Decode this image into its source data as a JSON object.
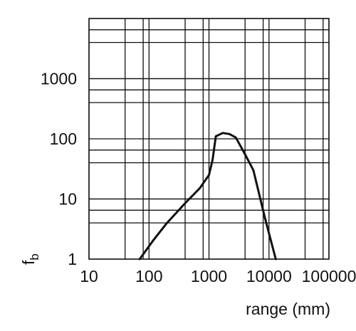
{
  "chart_data": {
    "type": "line",
    "xscale": "log",
    "yscale": "log",
    "xlim": [
      10,
      100000
    ],
    "ylim": [
      1,
      10000
    ],
    "xlabel": "range (mm)",
    "ylabel": "f_b",
    "ylabel_main": "f",
    "ylabel_sub": "b",
    "grid": true,
    "x_minor_grid": [
      40,
      80,
      400,
      800,
      4000,
      8000,
      40000,
      80000
    ],
    "y_minor_grid": [
      4,
      6.5,
      10,
      40,
      65,
      400,
      650,
      1000,
      4000,
      6500
    ],
    "xticks": [
      {
        "value": 10,
        "label": "10"
      },
      {
        "value": 100,
        "label": "100"
      },
      {
        "value": 1000,
        "label": "1000"
      },
      {
        "value": 10000,
        "label": "10000"
      },
      {
        "value": 100000,
        "label": "100000"
      }
    ],
    "yticks": [
      {
        "value": 1,
        "label": "1"
      },
      {
        "value": 10,
        "label": "10"
      },
      {
        "value": 100,
        "label": "100"
      },
      {
        "value": 1000,
        "label": "1000"
      }
    ],
    "series": [
      {
        "x": [
          70,
          120,
          200,
          400,
          700,
          1000,
          1150,
          1300,
          1700,
          2200,
          2800,
          4000,
          5500,
          8500,
          13000
        ],
        "y": [
          1,
          2.1,
          4,
          8.5,
          15,
          25,
          45,
          110,
          125,
          120,
          105,
          55,
          30,
          5,
          1
        ],
        "color": "#111111"
      }
    ]
  }
}
